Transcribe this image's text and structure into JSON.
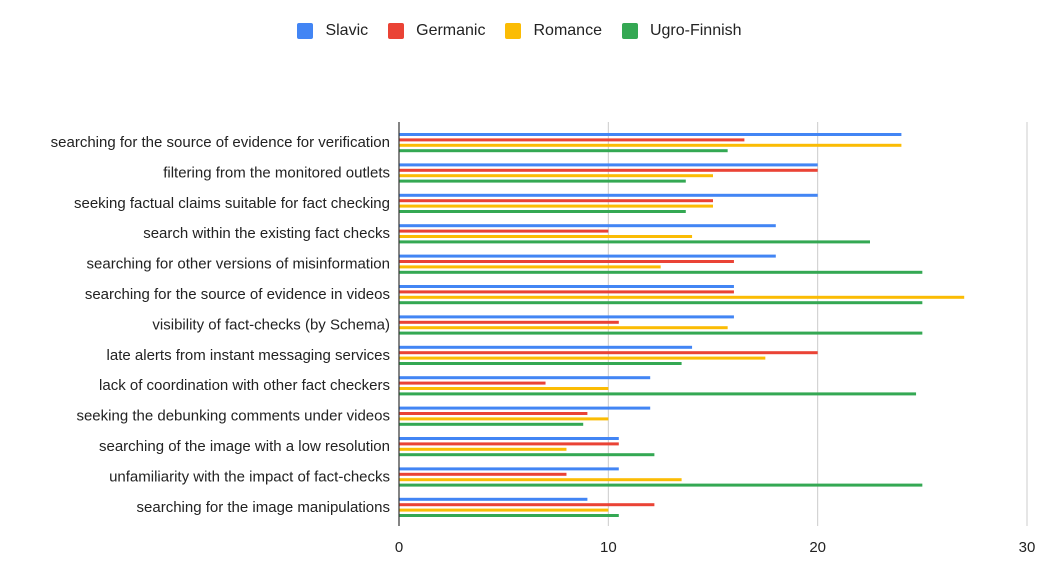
{
  "chart_data": {
    "type": "bar",
    "orientation": "horizontal",
    "title": "",
    "xlabel": "",
    "ylabel": "",
    "xlim": [
      0,
      30
    ],
    "x_ticks": [
      0,
      10,
      20,
      30
    ],
    "x_tick_labels": [
      "0",
      "10",
      "20",
      "30"
    ],
    "grid": true,
    "legend_position": "top-center",
    "categories": [
      "searching for the source of evidence for verification",
      "filtering from the monitored outlets",
      "seeking factual claims suitable for fact checking",
      "search within the existing fact checks",
      "searching for other versions of misinformation",
      "searching for the source of evidence in videos",
      "visibility of fact-checks (by Schema)",
      "late alerts from instant messaging services",
      "lack of coordination with other fact checkers",
      "seeking the debunking comments under videos",
      "searching of the image with a low resolution",
      "unfamiliarity with the impact of fact-checks",
      "searching for the image manipulations"
    ],
    "series": [
      {
        "name": "Slavic",
        "color": "#4285f4",
        "values": [
          24,
          20,
          20,
          18,
          18,
          16,
          16,
          14,
          12,
          12,
          10.5,
          10.5,
          9
        ]
      },
      {
        "name": "Germanic",
        "color": "#ea4335",
        "values": [
          16.5,
          20,
          15,
          10,
          16,
          16,
          10.5,
          20,
          7,
          9,
          10.5,
          8,
          12.2
        ]
      },
      {
        "name": "Romance",
        "color": "#fbbc04",
        "values": [
          24,
          15,
          15,
          14,
          12.5,
          27,
          15.7,
          17.5,
          10,
          10,
          8,
          13.5,
          10
        ]
      },
      {
        "name": "Ugro-Finnish",
        "color": "#34a853",
        "values": [
          15.7,
          13.7,
          13.7,
          22.5,
          25,
          25,
          25,
          13.5,
          24.7,
          8.8,
          12.2,
          25,
          10.5
        ]
      }
    ]
  }
}
